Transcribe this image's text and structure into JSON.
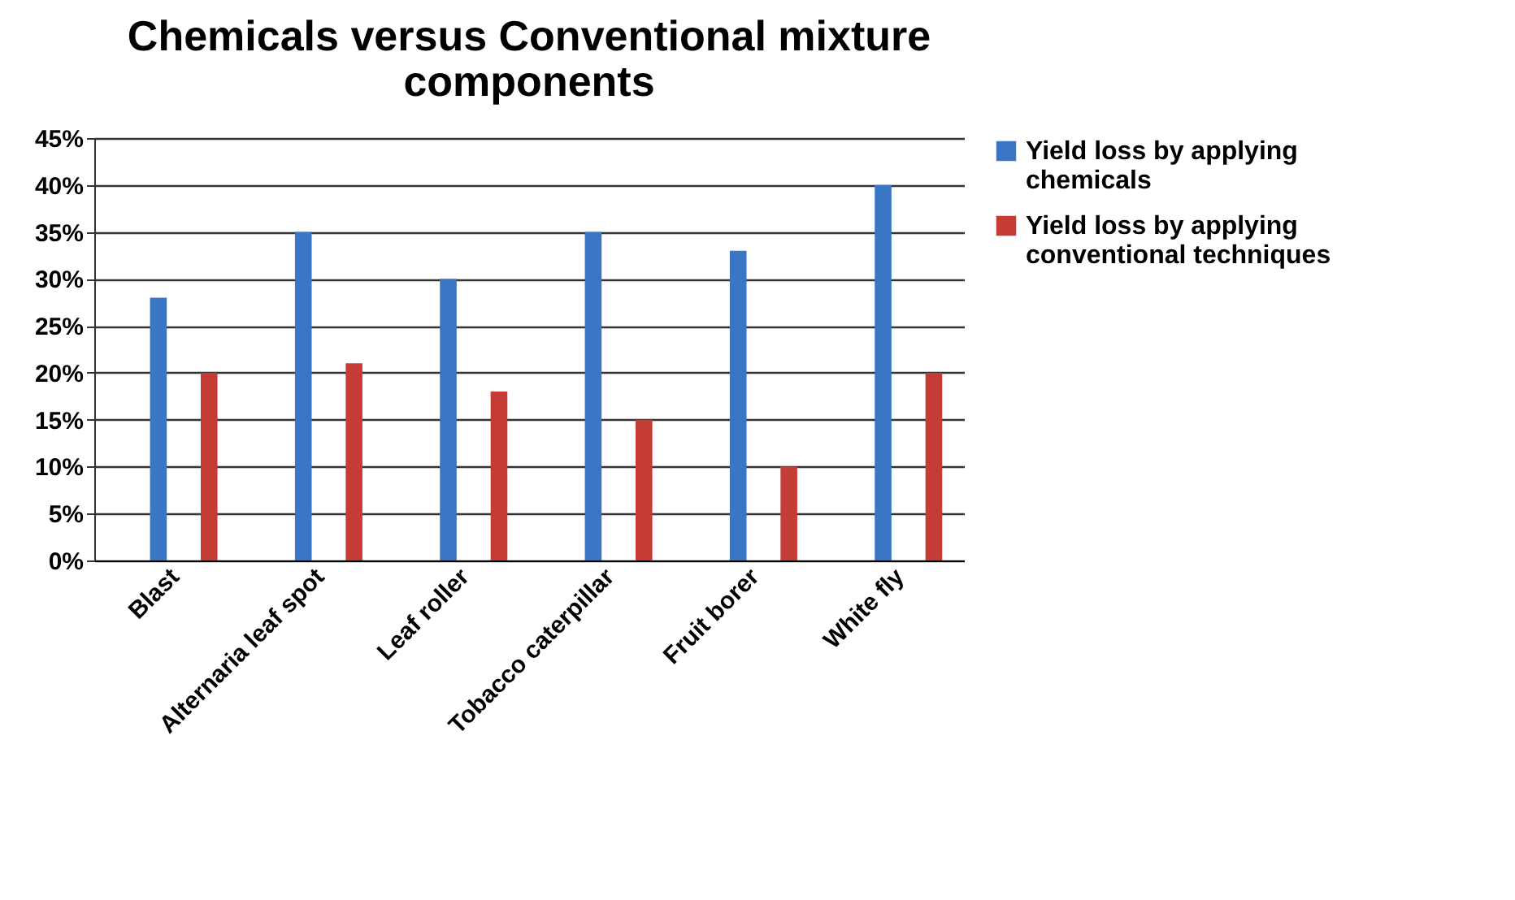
{
  "chart_data": {
    "type": "bar",
    "title": "Chemicals versus Conventional mixture components",
    "categories": [
      "Blast",
      "Alternaria leaf spot",
      "Leaf roller",
      "Tobacco caterpillar",
      "Fruit borer",
      "White fly"
    ],
    "series": [
      {
        "name": "Yield loss by applying chemicals",
        "color": "#3a76c4",
        "values": [
          28,
          35,
          30,
          35,
          33,
          40
        ]
      },
      {
        "name": "Yield loss by applying conventional techniques",
        "color": "#c43c35",
        "values": [
          20,
          21,
          18,
          15,
          10,
          20
        ]
      }
    ],
    "ylim": [
      0,
      45
    ],
    "yticks": [
      {
        "value": 0,
        "label": "0%"
      },
      {
        "value": 5,
        "label": "5%"
      },
      {
        "value": 10,
        "label": "10%"
      },
      {
        "value": 15,
        "label": "15%"
      },
      {
        "value": 20,
        "label": "20%"
      },
      {
        "value": 25,
        "label": "25%"
      },
      {
        "value": 30,
        "label": "30%"
      },
      {
        "value": 35,
        "label": "35%"
      },
      {
        "value": 40,
        "label": "40%"
      },
      {
        "value": 45,
        "label": "45%"
      }
    ],
    "grid": true,
    "legend": "right"
  }
}
